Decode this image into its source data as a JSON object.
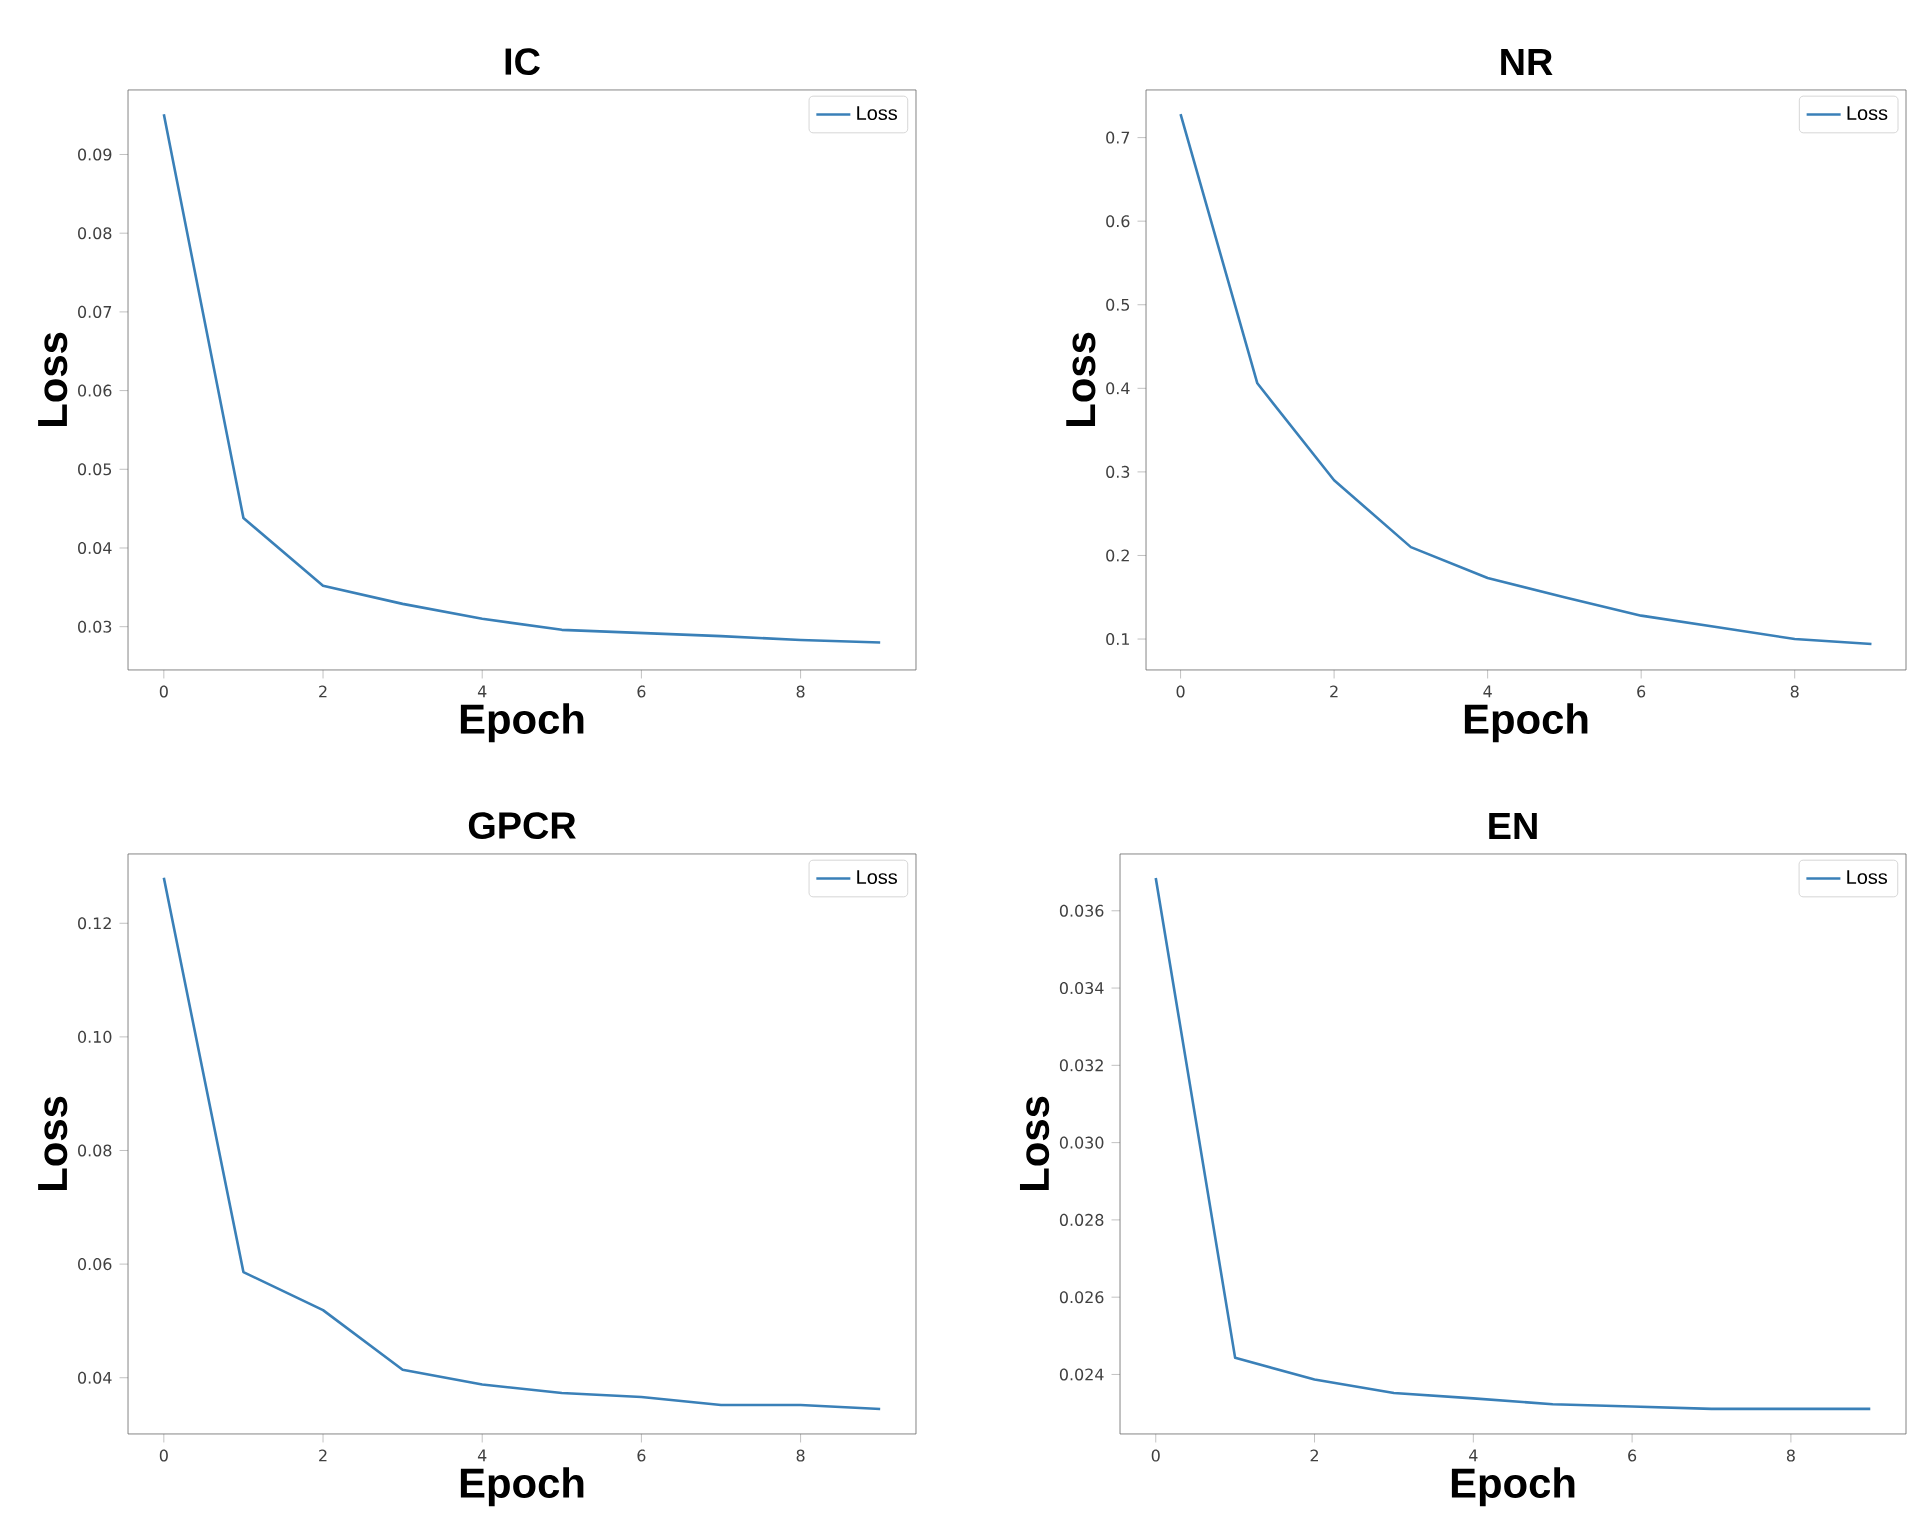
{
  "chart_data": [
    {
      "type": "line",
      "title": "IC",
      "xlabel": "Epoch",
      "ylabel": "Loss",
      "x": [
        0,
        1,
        2,
        3,
        4,
        5,
        6,
        7,
        8,
        9
      ],
      "series": [
        {
          "name": "Loss",
          "color": "#3a80b8",
          "values": [
            0.0951,
            0.0438,
            0.0352,
            0.0329,
            0.031,
            0.0296,
            0.0292,
            0.0288,
            0.0283,
            0.028
          ]
        }
      ],
      "xlim": [
        -0.45,
        9.45
      ],
      "ylim": [
        0.0245,
        0.0982
      ],
      "xticks": [
        0,
        2,
        4,
        6,
        8
      ],
      "yticks": [
        0.03,
        0.04,
        0.05,
        0.06,
        0.07,
        0.08,
        0.09
      ],
      "legend": "top right"
    },
    {
      "type": "line",
      "title": "NR",
      "xlabel": "Epoch",
      "ylabel": "Loss",
      "x": [
        0,
        1,
        2,
        3,
        4,
        5,
        6,
        7,
        8,
        9
      ],
      "series": [
        {
          "name": "Loss",
          "color": "#3a80b8",
          "values": [
            0.728,
            0.406,
            0.29,
            0.21,
            0.173,
            0.15,
            0.128,
            0.114,
            0.1,
            0.094
          ]
        }
      ],
      "xlim": [
        -0.45,
        9.45
      ],
      "ylim": [
        0.063,
        0.757
      ],
      "xticks": [
        0,
        2,
        4,
        6,
        8
      ],
      "yticks": [
        0.1,
        0.2,
        0.3,
        0.4,
        0.5,
        0.6,
        0.7
      ],
      "legend": "top right"
    },
    {
      "type": "line",
      "title": "GPCR",
      "xlabel": "Epoch",
      "ylabel": "Loss",
      "x": [
        0,
        1,
        2,
        3,
        4,
        5,
        6,
        7,
        8,
        9
      ],
      "series": [
        {
          "name": "Loss",
          "color": "#3a80b8",
          "values": [
            0.128,
            0.0586,
            0.0519,
            0.0414,
            0.0388,
            0.0373,
            0.0366,
            0.0352,
            0.0352,
            0.0345
          ]
        }
      ],
      "xlim": [
        -0.45,
        9.45
      ],
      "ylim": [
        0.0301,
        0.1322
      ],
      "xticks": [
        0,
        2,
        4,
        6,
        8
      ],
      "yticks": [
        0.04,
        0.06,
        0.08,
        {
          "value": 0.1,
          "label": "0.10"
        },
        0.12
      ],
      "legend": "top right"
    },
    {
      "type": "line",
      "title": "EN",
      "xlabel": "Epoch",
      "ylabel": "Loss",
      "x": [
        0,
        1,
        2,
        3,
        4,
        5,
        6,
        7,
        8,
        9
      ],
      "series": [
        {
          "name": "Loss",
          "color": "#3a80b8",
          "values": [
            0.03685,
            0.02443,
            0.02387,
            0.02352,
            0.02338,
            0.02323,
            0.02317,
            0.02311,
            0.02311,
            0.02311
          ]
        }
      ],
      "xlim": [
        -0.45,
        9.45
      ],
      "ylim": [
        0.02246,
        0.03747
      ],
      "xticks": [
        0,
        2,
        4,
        6,
        8
      ],
      "yticks": [
        0.024,
        0.026,
        0.028,
        {
          "value": 0.03,
          "label": "0.030"
        },
        0.032,
        0.034,
        0.036
      ],
      "legend": "top right"
    }
  ]
}
